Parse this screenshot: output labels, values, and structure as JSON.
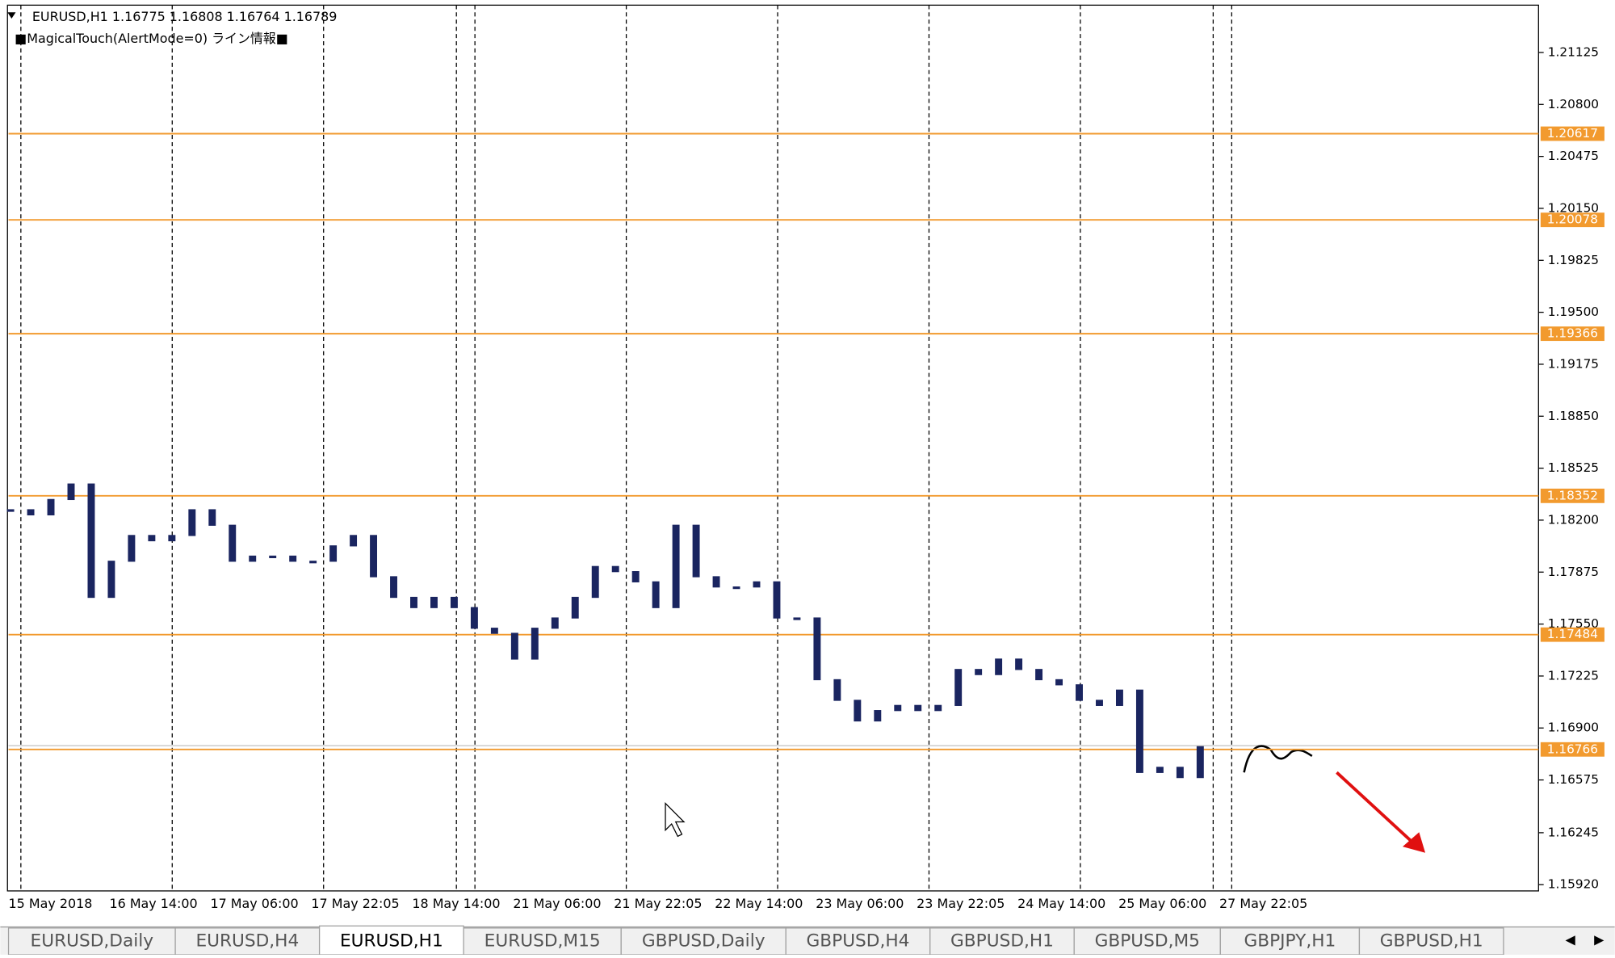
{
  "window": {
    "title_line": "EURUSD,H1  1.16775 1.16808 1.16764 1.16789",
    "indicator": "■MagicalTouch(AlertMode=0) ライン情報■"
  },
  "chart_data": {
    "type": "candlestick",
    "ylim": [
      1.15881,
      1.21421
    ],
    "yticks": [
      1.21125,
      {
        "value": 1.208,
        "label": "1.20800"
      },
      1.20475,
      {
        "value": 1.2015,
        "label": "1.20150"
      },
      1.19825,
      {
        "value": 1.195,
        "label": "1.19500"
      },
      1.19175,
      {
        "value": 1.1885,
        "label": "1.18850"
      },
      1.18525,
      {
        "value": 1.182,
        "label": "1.18200"
      },
      1.17875,
      {
        "value": 1.1755,
        "label": "1.17550"
      },
      1.17225,
      {
        "value": 1.169,
        "label": "1.16900"
      },
      1.16575,
      1.16245,
      {
        "value": 1.1592,
        "label": "1.15920"
      }
    ],
    "levels": [
      1.20617,
      1.20078,
      1.19366,
      1.18352,
      1.17484,
      1.16766
    ],
    "level_color": "#f29a2e",
    "candle_color": "#1a2560",
    "x_labels": [
      "15 May 2018",
      "16 May 14:00",
      "17 May 06:00",
      "17 May 22:05",
      "18 May 14:00",
      "21 May 06:00",
      "21 May 22:05",
      "22 May 14:00",
      "23 May 06:00",
      "23 May 22:05",
      "24 May 14:00",
      "25 May 06:00",
      "27 May 22:05"
    ],
    "closes": [
      1.18265,
      1.18233,
      1.18329,
      1.18426,
      1.17717,
      1.17943,
      1.18104,
      1.18071,
      1.18104,
      1.18265,
      1.18168,
      1.17943,
      1.17975,
      1.17975,
      1.17943,
      1.17943,
      1.18039,
      1.18104,
      1.17846,
      1.17717,
      1.17653,
      1.17717,
      1.17653,
      1.17524,
      1.17492,
      1.17331,
      1.17524,
      1.17588,
      1.17717,
      1.1791,
      1.17878,
      1.17814,
      1.17653,
      1.18168,
      1.17846,
      1.17782,
      1.17782,
      1.17814,
      1.17588,
      1.17588,
      1.17202,
      1.17073,
      1.16944,
      1.17009,
      1.17041,
      1.17009,
      1.17041,
      1.17266,
      1.17234,
      1.17331,
      1.17266,
      1.17202,
      1.1717,
      1.17073,
      1.17041,
      1.17137,
      1.16622,
      1.16654,
      1.1659,
      1.16783
    ]
  },
  "tabs": [
    "EURUSD,Daily",
    "EURUSD,H4",
    "EURUSD,H1",
    "EURUSD,M15",
    "GBPUSD,Daily",
    "GBPUSD,H4",
    "GBPUSD,H1",
    "GBPUSD,M5",
    "GBPJPY,H1",
    "GBPUSD,H1"
  ],
  "active_tab": 2
}
